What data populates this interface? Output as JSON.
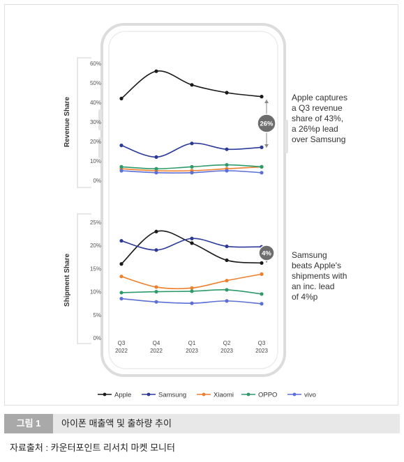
{
  "figure": {
    "label": "그림 1",
    "title": "아이폰 매출액 및 출하량 추이",
    "source": "자료출처 : 카운터포인트 리서치 마켓 모니터"
  },
  "categories": [
    "Q3\n2022",
    "Q4\n2022",
    "Q1\n2023",
    "Q2\n2023",
    "Q3\n2023"
  ],
  "legend": {
    "placement": "bottom",
    "items": [
      {
        "name": "Apple",
        "color": "#1a1a1a"
      },
      {
        "name": "Samsung",
        "color": "#2b3a98"
      },
      {
        "name": "Xiaomi",
        "color": "#ee7f2d"
      },
      {
        "name": "OPPO",
        "color": "#2e9a6a"
      },
      {
        "name": "vivo",
        "color": "#5b6fd6"
      }
    ]
  },
  "chart_data": [
    {
      "type": "line",
      "ylabel": "Revenue Share",
      "ylim": [
        0,
        60
      ],
      "yticks": [
        "0%",
        "10%",
        "20%",
        "30%",
        "40%",
        "50%",
        "60%"
      ],
      "series": [
        {
          "name": "Apple",
          "values": [
            42,
            56,
            49,
            45,
            43
          ]
        },
        {
          "name": "Samsung",
          "values": [
            18,
            12,
            19,
            16,
            17
          ]
        },
        {
          "name": "Xiaomi",
          "values": [
            6,
            5,
            5,
            6,
            7
          ]
        },
        {
          "name": "OPPO",
          "values": [
            7,
            6,
            7,
            8,
            7
          ]
        },
        {
          "name": "vivo",
          "values": [
            5,
            4,
            4,
            5,
            4
          ]
        }
      ],
      "annotation": {
        "badge": "26%",
        "text": [
          "Apple captures",
          "a Q3 revenue",
          "share of 43%,",
          "a 26%p lead",
          "over Samsung"
        ]
      }
    },
    {
      "type": "line",
      "ylabel": "Shipment Share",
      "ylim": [
        0,
        25
      ],
      "yticks": [
        "0%",
        "5%",
        "10%",
        "15%",
        "20%",
        "25%"
      ],
      "series": [
        {
          "name": "Apple",
          "values": [
            16,
            23,
            20.5,
            16.8,
            16.2
          ]
        },
        {
          "name": "Samsung",
          "values": [
            21,
            19,
            21.5,
            19.8,
            19.7
          ]
        },
        {
          "name": "Xiaomi",
          "values": [
            13.3,
            11,
            10.8,
            12.4,
            13.8
          ]
        },
        {
          "name": "OPPO",
          "values": [
            9.8,
            10,
            10.1,
            10.4,
            9.5
          ]
        },
        {
          "name": "vivo",
          "values": [
            8.5,
            7.8,
            7.5,
            8,
            7.4
          ]
        }
      ],
      "annotation": {
        "badge": "4%",
        "text": [
          "Samsung",
          "beats Apple's",
          "shipments with",
          "an inc. lead",
          "of 4%p"
        ]
      }
    }
  ]
}
